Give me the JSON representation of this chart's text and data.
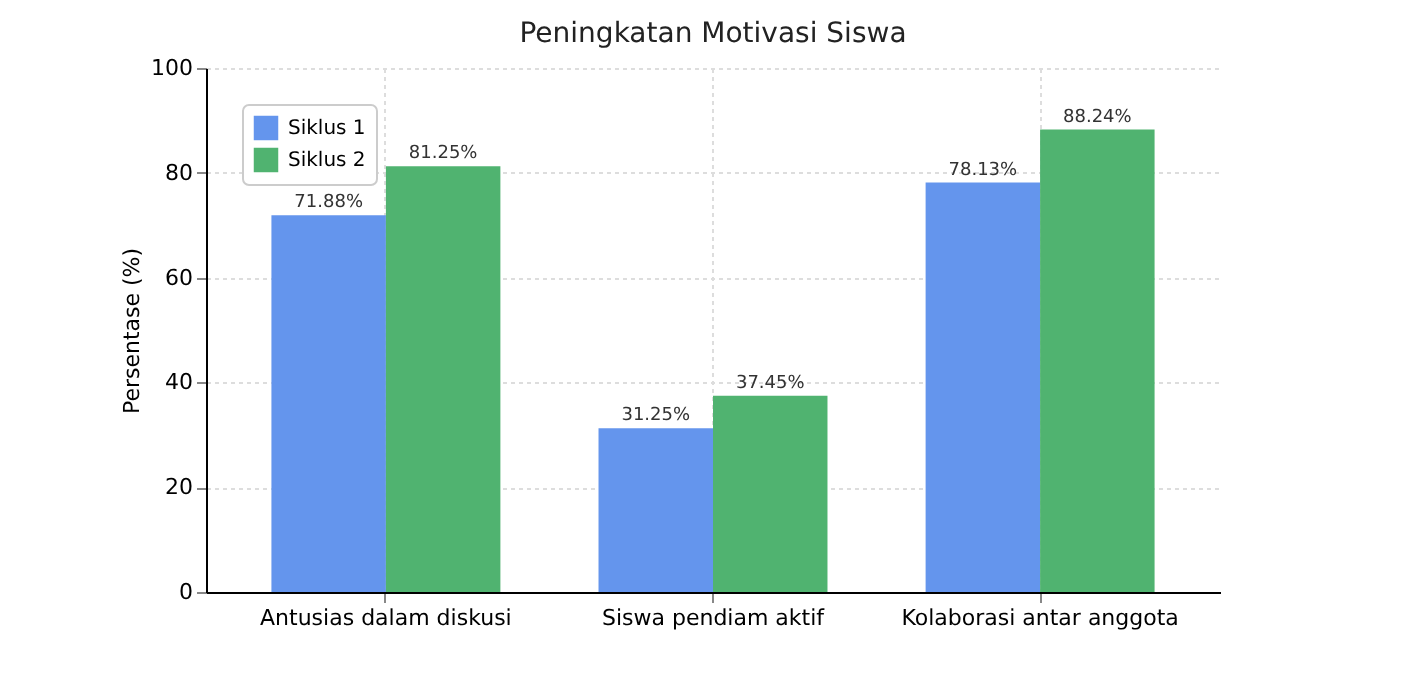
{
  "chart_data": {
    "type": "bar",
    "title": "Peningkatan Motivasi Siswa",
    "ylabel": "Persentase (%)",
    "categories": [
      "Antusias dalam diskusi",
      "Siswa pendiam aktif",
      "Kolaborasi antar anggota"
    ],
    "series": [
      {
        "name": "Siklus 1",
        "color": "#6495ed",
        "values": [
          71.88,
          31.25,
          78.13
        ],
        "value_labels": [
          "71.88%",
          "31.25%",
          "78.13%"
        ]
      },
      {
        "name": "Siklus 2",
        "color": "#50b370",
        "values": [
          81.25,
          37.45,
          88.24
        ],
        "value_labels": [
          "81.25%",
          "37.45%",
          "88.24%"
        ]
      }
    ],
    "ylim": [
      0,
      100
    ],
    "yticks": [
      0,
      20,
      40,
      60,
      80,
      100
    ],
    "grid": true,
    "legend": "top left"
  }
}
